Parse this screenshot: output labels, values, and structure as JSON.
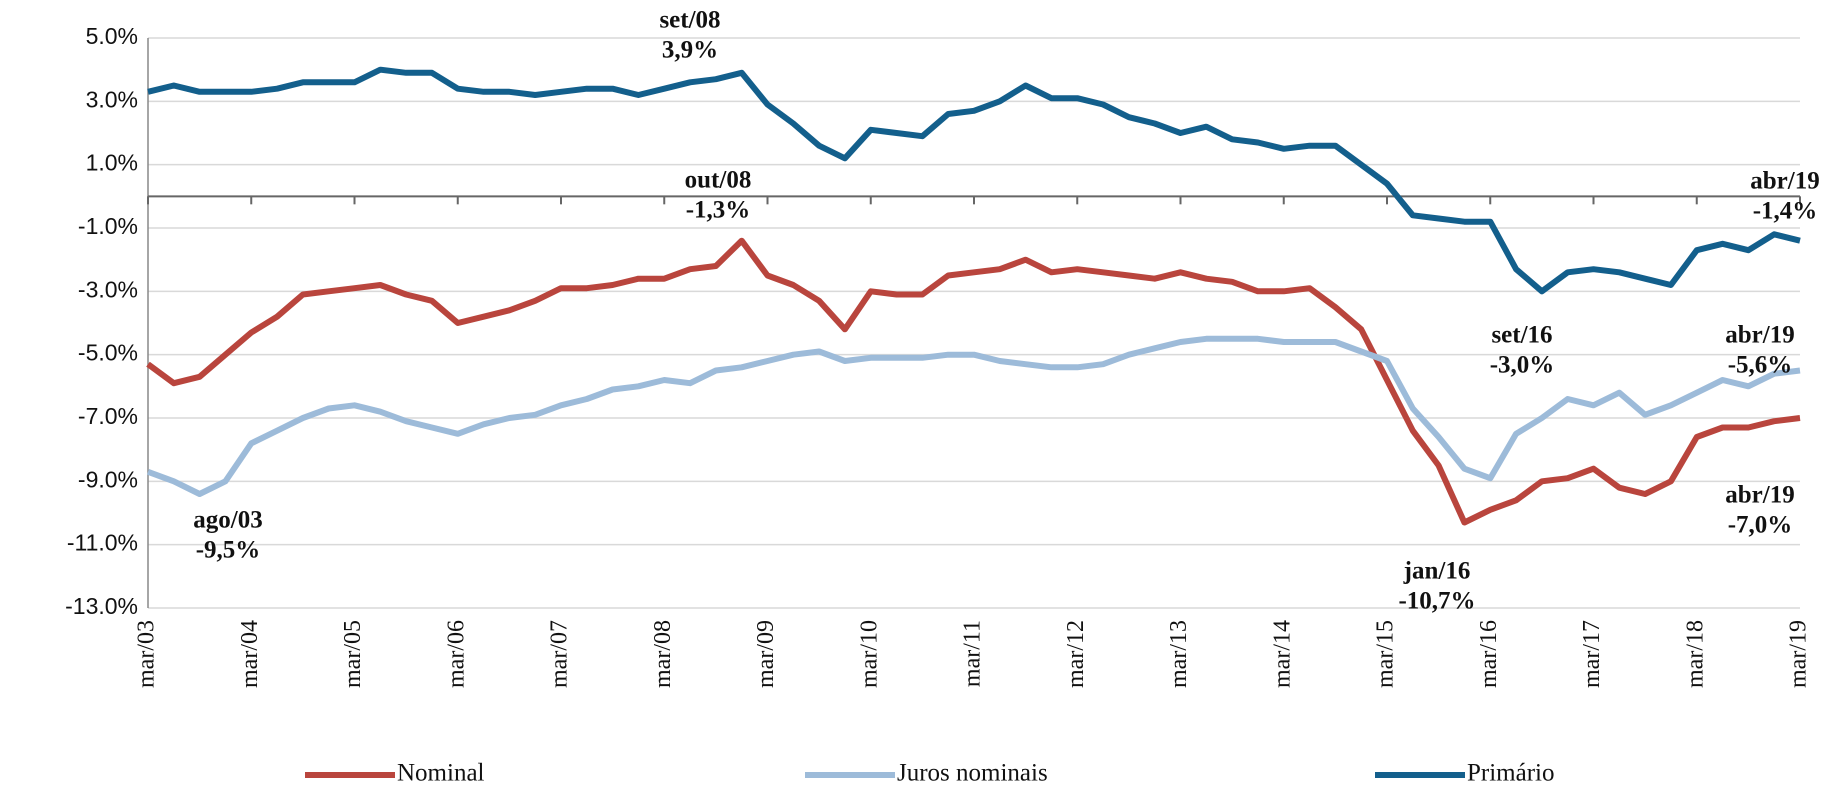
{
  "chart_data": {
    "type": "line",
    "categories": [
      "mar/03",
      null,
      null,
      null,
      "mar/04",
      null,
      null,
      null,
      "mar/05",
      null,
      null,
      null,
      "mar/06",
      null,
      null,
      null,
      "mar/07",
      null,
      null,
      null,
      "mar/08",
      null,
      null,
      null,
      "mar/09",
      null,
      null,
      null,
      "mar/10",
      null,
      null,
      null,
      "mar/11",
      null,
      null,
      null,
      "mar/12",
      null,
      null,
      null,
      "mar/13",
      null,
      null,
      null,
      "mar/14",
      null,
      null,
      null,
      "mar/15",
      null,
      null,
      null,
      "mar/16",
      null,
      null,
      null,
      "mar/17",
      null,
      null,
      null,
      "mar/18",
      null,
      null,
      null,
      "mar/19"
    ],
    "series": [
      {
        "name": "Nominal",
        "color": "#b9453d",
        "values": [
          -5.3,
          -5.9,
          -5.7,
          -5.0,
          -4.3,
          -3.8,
          -3.1,
          -3.0,
          -2.9,
          -2.8,
          -3.1,
          -3.3,
          -4.0,
          -3.8,
          -3.6,
          -3.3,
          -2.9,
          -2.9,
          -2.8,
          -2.6,
          -2.6,
          -2.3,
          -2.2,
          -1.4,
          -2.5,
          -2.8,
          -3.3,
          -4.2,
          -3.0,
          -3.1,
          -3.1,
          -2.5,
          -2.4,
          -2.3,
          -2.0,
          -2.4,
          -2.3,
          -2.4,
          -2.5,
          -2.6,
          -2.4,
          -2.6,
          -2.7,
          -3.0,
          -3.0,
          -2.9,
          -3.5,
          -4.2,
          -5.8,
          -7.4,
          -8.5,
          -10.3,
          -9.9,
          -9.6,
          -9.0,
          -8.9,
          -8.6,
          -9.2,
          -9.4,
          -9.0,
          -7.6,
          -7.3,
          -7.3,
          -7.1,
          -7.0
        ]
      },
      {
        "name": "Juros nominais",
        "color": "#9dbbd9",
        "values": [
          -8.7,
          -9.0,
          -9.4,
          -9.0,
          -7.8,
          -7.4,
          -7.0,
          -6.7,
          -6.6,
          -6.8,
          -7.1,
          -7.3,
          -7.5,
          -7.2,
          -7.0,
          -6.9,
          -6.6,
          -6.4,
          -6.1,
          -6.0,
          -5.8,
          -5.9,
          -5.5,
          -5.4,
          -5.2,
          -5.0,
          -4.9,
          -5.2,
          -5.1,
          -5.1,
          -5.1,
          -5.0,
          -5.0,
          -5.2,
          -5.3,
          -5.4,
          -5.4,
          -5.3,
          -5.0,
          -4.8,
          -4.6,
          -4.5,
          -4.5,
          -4.5,
          -4.6,
          -4.6,
          -4.6,
          -4.9,
          -5.2,
          -6.7,
          -7.6,
          -8.6,
          -8.9,
          -7.5,
          -7.0,
          -6.4,
          -6.6,
          -6.2,
          -6.9,
          -6.6,
          -6.2,
          -5.8,
          -6.0,
          -5.6,
          -5.5
        ]
      },
      {
        "name": "Primário",
        "color": "#135f8c",
        "values": [
          3.3,
          3.5,
          3.3,
          3.3,
          3.3,
          3.4,
          3.6,
          3.6,
          3.6,
          4.0,
          3.9,
          3.9,
          3.4,
          3.3,
          3.3,
          3.2,
          3.3,
          3.4,
          3.4,
          3.2,
          3.4,
          3.6,
          3.7,
          3.9,
          2.9,
          2.3,
          1.6,
          1.2,
          2.1,
          2.0,
          1.9,
          2.6,
          2.7,
          3.0,
          3.5,
          3.1,
          3.1,
          2.9,
          2.5,
          2.3,
          2.0,
          2.2,
          1.8,
          1.7,
          1.5,
          1.6,
          1.6,
          1.0,
          0.4,
          -0.6,
          -0.7,
          -0.8,
          -0.8,
          -2.3,
          -3.0,
          -2.4,
          -2.3,
          -2.4,
          -2.6,
          -2.8,
          -1.7,
          -1.5,
          -1.7,
          -1.2,
          -1.4
        ]
      }
    ],
    "ylim": [
      -13,
      5
    ],
    "yticks": [
      {
        "value": -13,
        "label": "-13.0%"
      },
      {
        "value": -11,
        "label": "-11.0%"
      },
      {
        "value": -9,
        "label": "-9.0%"
      },
      {
        "value": -7,
        "label": "-7.0%"
      },
      {
        "value": -5,
        "label": "-5.0%"
      },
      {
        "value": -3,
        "label": "-3.0%"
      },
      {
        "value": -1,
        "label": "-1.0%"
      },
      {
        "value": 1,
        "label": "1.0%"
      },
      {
        "value": 3,
        "label": "3.0%"
      },
      {
        "value": 5,
        "label": "5.0%"
      }
    ],
    "grid": true,
    "annotations": [
      [
        "set/08",
        "3,9%"
      ],
      [
        "out/08",
        "-1,3%"
      ],
      [
        "ago/03",
        "-9,5%"
      ],
      [
        "abr/19",
        "-1,4%"
      ],
      [
        "set/16",
        "-3,0%"
      ],
      [
        "abr/19",
        "-5,6%"
      ],
      [
        "jan/16",
        "-10,7%"
      ],
      [
        "abr/19",
        "-7,0%"
      ]
    ]
  }
}
